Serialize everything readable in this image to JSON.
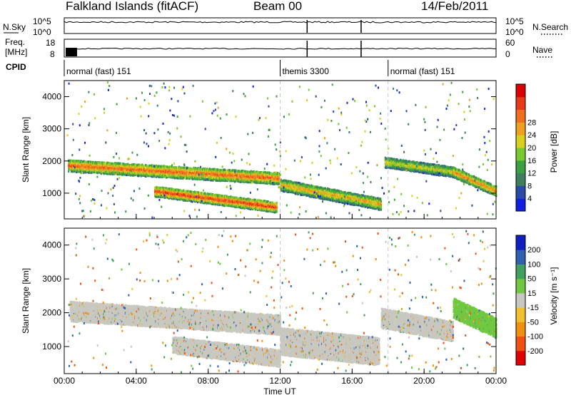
{
  "header": {
    "station": "Falkland Islands (fitACF)",
    "beam": "Beam 00",
    "date": "14/Feb/2011"
  },
  "top_panels": {
    "nsky_label": "N.Sky",
    "nsearch_label": "N.Search",
    "nsky_ticks": [
      "10^5",
      "10^0"
    ],
    "nsearch_ticks": [
      "10^5",
      "10^0"
    ],
    "freq_label_1": "Freq.",
    "freq_label_2": "[MHz]",
    "freq_ticks": [
      "18",
      "8"
    ],
    "nave_label": "Nave",
    "nave_ticks": [
      "60",
      "0"
    ],
    "cpid_label": "CPID",
    "cpid_segments": [
      {
        "label": "normal (fast) 151",
        "start_hour": 0.0
      },
      {
        "label": "themis 3300",
        "start_hour": 12.0
      },
      {
        "label": "normal (fast) 151",
        "start_hour": 18.0
      }
    ]
  },
  "chart_data": [
    {
      "type": "heatmap",
      "name": "power",
      "ylabel": "Slant Range [km]",
      "xlabel": "",
      "xlim": [
        0,
        24
      ],
      "ylim": [
        200,
        4500
      ],
      "yticks": [
        1000,
        2000,
        3000,
        4000
      ],
      "colorbar": {
        "label": "Power [dB]",
        "ticks": [
          "4",
          "8",
          "12",
          "16",
          "20",
          "24",
          "28"
        ],
        "colors": [
          "#1020e0",
          "#2a4aa8",
          "#3f7e5e",
          "#3aa040",
          "#78c830",
          "#d8d020",
          "#f0a020",
          "#f07020",
          "#e83a18",
          "#d80000"
        ]
      },
      "bands": [
        {
          "t": [
            0.2,
            12.0
          ],
          "r_start": 1900,
          "r_end": 1500,
          "width": 350,
          "value": 24
        },
        {
          "t": [
            5.0,
            11.8
          ],
          "r_start": 1100,
          "r_end": 600,
          "width": 300,
          "value": 26
        },
        {
          "t": [
            12.0,
            17.6
          ],
          "r_start": 1300,
          "r_end": 700,
          "width": 350,
          "value": 20
        },
        {
          "t": [
            17.8,
            21.6
          ],
          "r_start": 2000,
          "r_end": 1700,
          "width": 300,
          "value": 18
        },
        {
          "t": [
            21.6,
            24.0
          ],
          "r_start": 1700,
          "r_end": 1100,
          "width": 300,
          "value": 22
        }
      ]
    },
    {
      "type": "heatmap",
      "name": "velocity",
      "ylabel": "Slant Range [km]",
      "xlabel": "Time UT",
      "xlim": [
        0,
        24
      ],
      "ylim": [
        200,
        4500
      ],
      "yticks": [
        1000,
        2000,
        3000,
        4000
      ],
      "xticks": [
        "00:00",
        "04:00",
        "08:00",
        "12:00",
        "16:00",
        "20:00",
        "00:00"
      ],
      "colorbar": {
        "label": "Velocity [m s⁻¹]",
        "ticks": [
          "-200",
          "-100",
          "-50",
          "-15",
          "15",
          "50",
          "100",
          "200"
        ],
        "colors": [
          "#e00000",
          "#f05010",
          "#f09010",
          "#f0c030",
          "#c8c8c0",
          "#70c840",
          "#40a060",
          "#3060b0",
          "#1020c0"
        ]
      },
      "bands": [
        {
          "t": [
            0.3,
            12.0
          ],
          "r_start": 2100,
          "r_end": 1700,
          "width": 600,
          "value": 0
        },
        {
          "t": [
            6.0,
            12.0
          ],
          "r_start": 1100,
          "r_end": 700,
          "width": 500,
          "value": 0
        },
        {
          "t": [
            12.0,
            17.5
          ],
          "r_start": 1200,
          "r_end": 900,
          "width": 800,
          "value": 0
        },
        {
          "t": [
            17.6,
            21.6
          ],
          "r_start": 1900,
          "r_end": 1500,
          "width": 600,
          "value": 0
        },
        {
          "t": [
            21.6,
            24.0
          ],
          "r_start": 2200,
          "r_end": 1600,
          "width": 600,
          "value": 30
        }
      ]
    }
  ]
}
